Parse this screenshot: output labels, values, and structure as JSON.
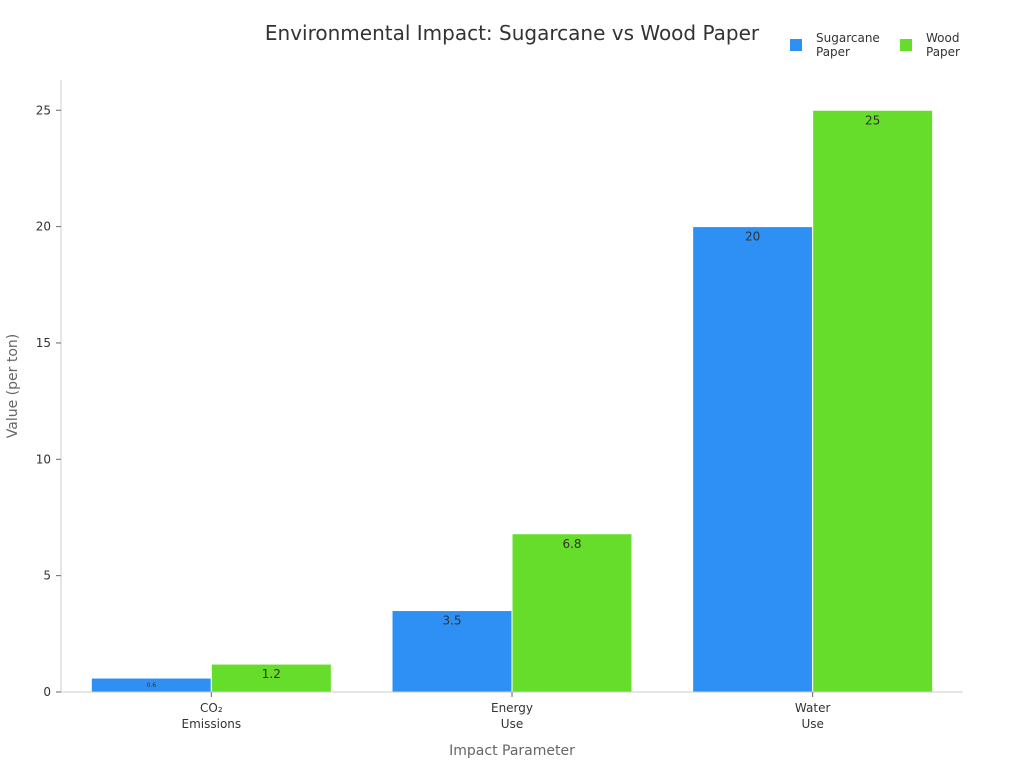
{
  "chart_data": {
    "type": "bar",
    "title": "Environmental Impact: Sugarcane vs Wood Paper",
    "xlabel": "Impact Parameter",
    "ylabel": "Value (per ton)",
    "categories": [
      [
        "CO₂",
        "Emissions"
      ],
      [
        "Energy",
        "Use"
      ],
      [
        "Water",
        "Use"
      ]
    ],
    "series": [
      {
        "name": [
          "Sugarcane",
          "Paper"
        ],
        "color": "#2e90f5",
        "values": [
          0.6,
          3.5,
          20
        ],
        "labels": [
          "0.6",
          "3.5",
          "20"
        ]
      },
      {
        "name": [
          "Wood",
          "Paper"
        ],
        "color": "#66dd2a",
        "values": [
          1.2,
          6.8,
          25
        ],
        "labels": [
          "1.2",
          "6.8",
          "25"
        ]
      }
    ],
    "ylim": [
      0,
      26.3
    ],
    "yticks": [
      0,
      5,
      10,
      15,
      20,
      25
    ],
    "grid": false,
    "legend_position": "top-right"
  }
}
